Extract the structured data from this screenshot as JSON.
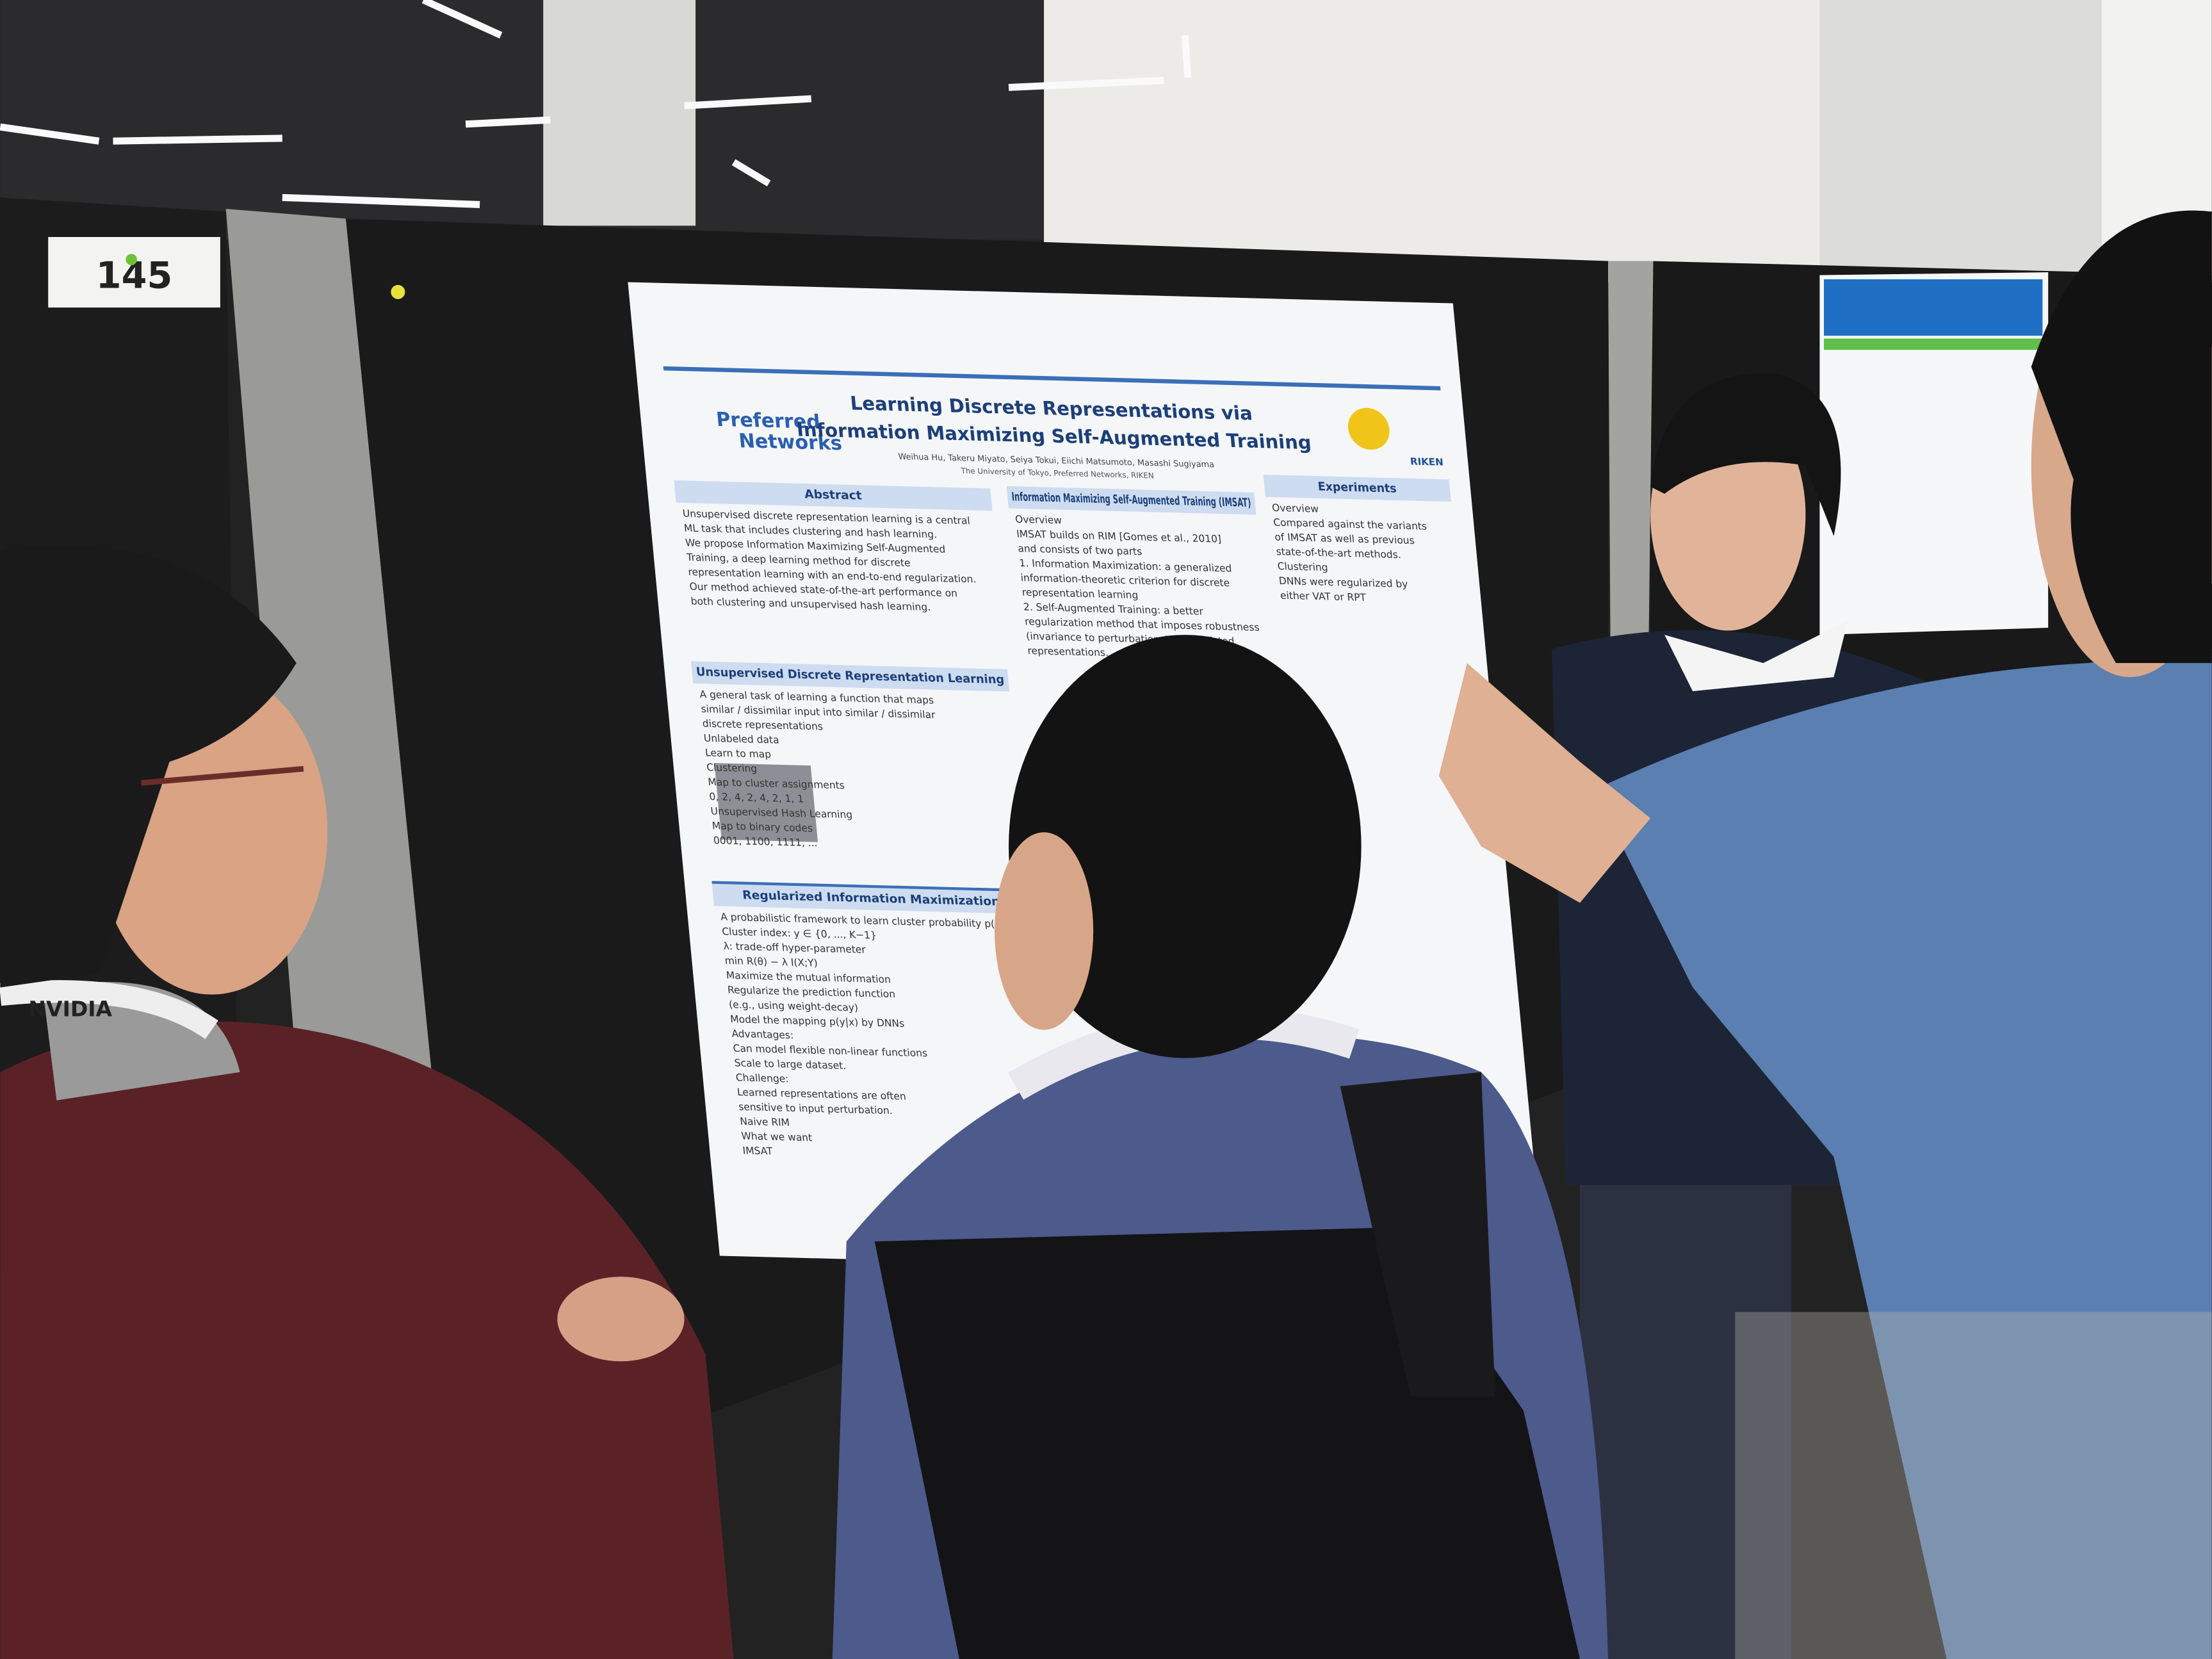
{
  "board_number": "145",
  "badge": "NVIDIA",
  "poster": {
    "logo": [
      "Preferred",
      "Networks"
    ],
    "title": [
      "Learning Discrete Representations via",
      "Information Maximizing Self-Augmented Training"
    ],
    "authors": "Weihua Hu, Takeru Miyato, Seiya Tokui, Eiichi Matsumoto, Masashi Sugiyama",
    "affiliations": "The University of Tokyo, Preferred Networks, RIKEN",
    "right_logo": "RIKEN",
    "sections": [
      {
        "heading": "Abstract",
        "lines": [
          "Unsupervised discrete representation learning is a central",
          "ML task that includes clustering and hash learning.",
          "We propose Information Maximizing Self-Augmented",
          "Training, a deep learning method for discrete",
          "representation learning with an end-to-end regularization.",
          "Our method achieved state-of-the-art performance on",
          "both clustering and unsupervised hash learning."
        ]
      },
      {
        "heading": "Unsupervised Discrete Representation Learning",
        "lines": [
          "A general task of learning a function that maps",
          "similar / dissimilar input into similar / dissimilar",
          "discrete representations",
          "Unlabeled data",
          "Learn to map",
          "Clustering",
          "Map to cluster assignments",
          "0, 2, 4, 2, 4, 2, 1, 1",
          "Unsupervised Hash Learning",
          "Map to binary codes",
          "0001, 1100, 1111, ..."
        ]
      },
      {
        "heading": "Regularized Information Maximization",
        "lines": [
          "A probabilistic framework to learn cluster probability p(y|x)",
          "Cluster index: y ∈ {0, ..., K−1}",
          "λ: trade-off hyper-parameter",
          "min R(θ) − λ I(X;Y)",
          "Maximize the mutual information",
          "Regularize the prediction function",
          "(e.g., using weight-decay)",
          "Model the mapping p(y|x) by DNNs",
          "Advantages:",
          "Can model flexible non-linear functions",
          "Scale to large dataset.",
          "Challenge:",
          "Learned representations are often",
          "sensitive to input perturbation.",
          "Naive RIM",
          "What we want",
          "IMSAT"
        ]
      },
      {
        "heading": "Information Maximizing Self-Augmented Training (IMSAT)",
        "lines": [
          "Overview",
          "IMSAT builds on RIM [Gomes et al., 2010]",
          "and consists of two parts",
          "1. Information Maximization: a generalized",
          "information-theoretic criterion for discrete",
          "representation learning",
          "2. Self-Augmented Training: a better",
          "regularization method that imposes robustness",
          "(invariance to perturbations) on predicted",
          "representations."
        ]
      },
      {
        "heading": "Experiments",
        "lines": [
          "Overview",
          "Compared against the variants",
          "of IMSAT as well as previous",
          "state-of-the-art methods.",
          "Clustering",
          "DNNs were regularized by",
          "either VAT or RPT"
        ]
      }
    ]
  }
}
